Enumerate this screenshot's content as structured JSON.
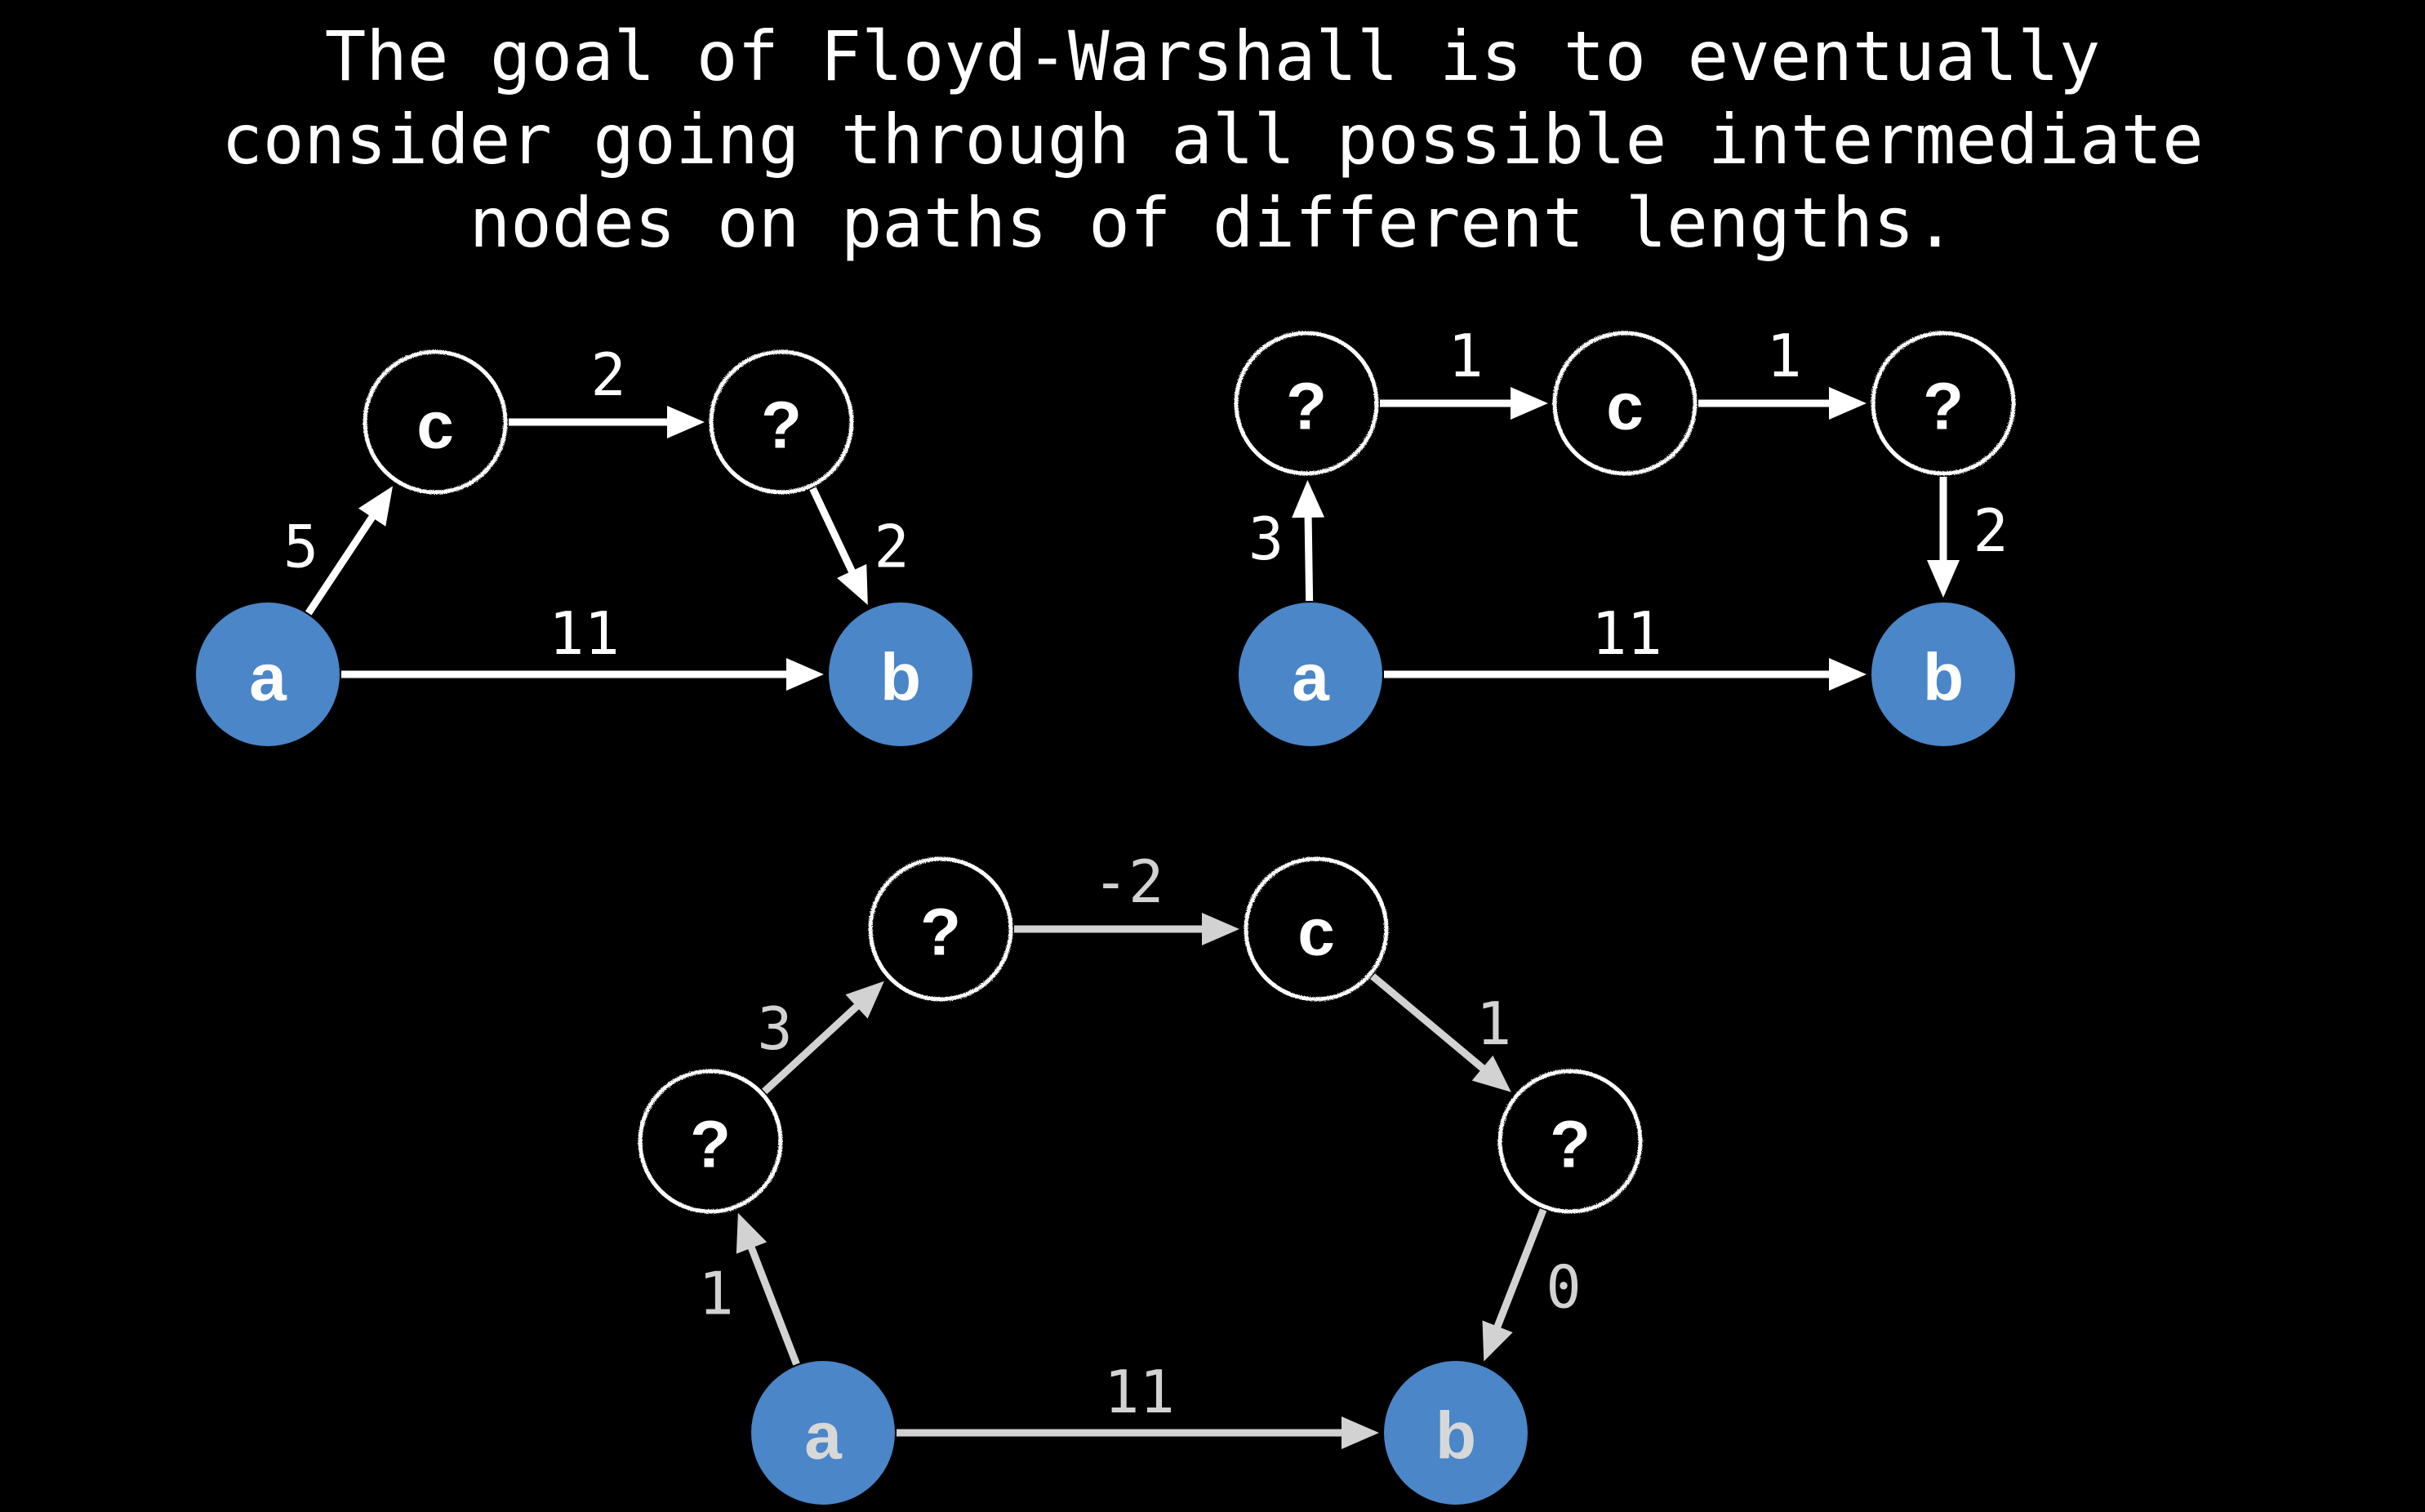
{
  "title": "The goal of Floyd-Warshall is to eventually\nconsider going through all possible intermediate\nnodes on paths of different lengths.",
  "colors": {
    "background": "#000000",
    "endpoint_node": "#4a86c8",
    "intermediate_stroke": "#ffffff",
    "edge_bright": "#ffffff",
    "edge_dim": "#d2d2d2"
  },
  "graphs": [
    {
      "nodes": [
        {
          "id": "a",
          "label": "a",
          "kind": "endpoint"
        },
        {
          "id": "c",
          "label": "c",
          "kind": "intermediate"
        },
        {
          "id": "q1",
          "label": "?",
          "kind": "intermediate"
        },
        {
          "id": "b",
          "label": "b",
          "kind": "endpoint"
        }
      ],
      "edges": [
        {
          "from": "a",
          "to": "c",
          "weight": "5"
        },
        {
          "from": "c",
          "to": "q1",
          "weight": "2"
        },
        {
          "from": "q1",
          "to": "b",
          "weight": "2"
        },
        {
          "from": "a",
          "to": "b",
          "weight": "11"
        }
      ]
    },
    {
      "nodes": [
        {
          "id": "a",
          "label": "a",
          "kind": "endpoint"
        },
        {
          "id": "q1",
          "label": "?",
          "kind": "intermediate"
        },
        {
          "id": "c",
          "label": "c",
          "kind": "intermediate"
        },
        {
          "id": "q2",
          "label": "?",
          "kind": "intermediate"
        },
        {
          "id": "b",
          "label": "b",
          "kind": "endpoint"
        }
      ],
      "edges": [
        {
          "from": "a",
          "to": "q1",
          "weight": "3"
        },
        {
          "from": "q1",
          "to": "c",
          "weight": "1"
        },
        {
          "from": "c",
          "to": "q2",
          "weight": "1"
        },
        {
          "from": "q2",
          "to": "b",
          "weight": "2"
        },
        {
          "from": "a",
          "to": "b",
          "weight": "11"
        }
      ]
    },
    {
      "nodes": [
        {
          "id": "a",
          "label": "a",
          "kind": "endpoint"
        },
        {
          "id": "q1",
          "label": "?",
          "kind": "intermediate"
        },
        {
          "id": "q2",
          "label": "?",
          "kind": "intermediate"
        },
        {
          "id": "c",
          "label": "c",
          "kind": "intermediate"
        },
        {
          "id": "q3",
          "label": "?",
          "kind": "intermediate"
        },
        {
          "id": "b",
          "label": "b",
          "kind": "endpoint"
        }
      ],
      "edges": [
        {
          "from": "a",
          "to": "q1",
          "weight": "1"
        },
        {
          "from": "q1",
          "to": "q2",
          "weight": "3"
        },
        {
          "from": "q2",
          "to": "c",
          "weight": "-2"
        },
        {
          "from": "c",
          "to": "q3",
          "weight": "1"
        },
        {
          "from": "q3",
          "to": "b",
          "weight": "0"
        },
        {
          "from": "a",
          "to": "b",
          "weight": "11"
        }
      ]
    }
  ]
}
